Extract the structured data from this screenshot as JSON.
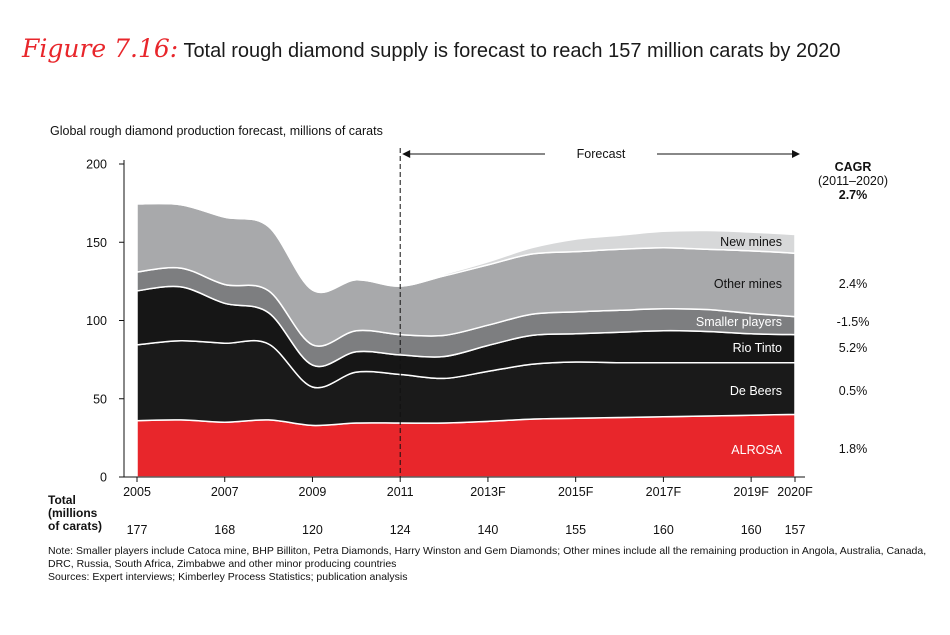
{
  "figure": {
    "label": "Figure 7.16:",
    "title": "Total rough diamond supply is forecast to reach 157 million carats by 2020"
  },
  "colors": {
    "ALROSA": "#e8262b",
    "De Beers": "#1a1a1a",
    "Rio Tinto": "#161616",
    "Smaller players": "#7d7e80",
    "Other mines": "#a8a9ab",
    "New mines": "#d7d8d9"
  },
  "chart_data": {
    "type": "area",
    "stacked": true,
    "subtitle": "Global rough diamond production forecast, millions of carats",
    "x": [
      2005,
      2006,
      2007,
      2008,
      2009,
      2010,
      2011,
      2012,
      2013,
      2014,
      2015,
      2016,
      2017,
      2018,
      2019,
      2020
    ],
    "xtick_labels": [
      "2005",
      "2007",
      "2009",
      "2011",
      "2013F",
      "2015F",
      "2017F",
      "2019F",
      "2020F"
    ],
    "xtick_values": [
      2005,
      2007,
      2009,
      2011,
      2013,
      2015,
      2017,
      2019,
      2020
    ],
    "ylim": [
      0,
      200
    ],
    "yticks": [
      0,
      50,
      100,
      150,
      200
    ],
    "forecast_start": 2011,
    "forecast_label": "Forecast",
    "series": [
      {
        "name": "ALROSA",
        "values": [
          36,
          36.5,
          35,
          36.5,
          33,
          34.5,
          34.5,
          34.5,
          35.5,
          37,
          37.5,
          38,
          38.5,
          39,
          39.5,
          40
        ]
      },
      {
        "name": "De Beers",
        "values": [
          48.5,
          50.5,
          50.5,
          48.5,
          24.5,
          32.5,
          31,
          28.5,
          32,
          35,
          36,
          35,
          34.5,
          34,
          33.5,
          33
        ]
      },
      {
        "name": "Rio Tinto",
        "values": [
          34.5,
          34.5,
          25.5,
          20,
          14,
          13,
          12.5,
          14,
          16.5,
          18.5,
          18,
          19.5,
          20.5,
          20,
          18.5,
          18
        ]
      },
      {
        "name": "Smaller players",
        "values": [
          12,
          12,
          12,
          14,
          13,
          13.5,
          13,
          13.5,
          13,
          13.5,
          14,
          14,
          14,
          14,
          13,
          11.5
        ]
      },
      {
        "name": "Other mines",
        "values": [
          43.5,
          40.5,
          43,
          41,
          35,
          32.5,
          31,
          38,
          38.5,
          38.5,
          38.5,
          39,
          39,
          38.5,
          40,
          40.5
        ]
      },
      {
        "name": "New mines",
        "values": [
          0,
          0,
          0,
          0,
          0,
          0,
          0,
          1,
          2,
          4,
          8,
          9,
          10.5,
          12,
          12,
          12
        ]
      }
    ],
    "legend_labels": [
      "New mines",
      "Other mines",
      "Smaller players",
      "Rio Tinto",
      "De Beers",
      "ALROSA"
    ],
    "cagr": {
      "title": "CAGR",
      "period": "(2011–2020)",
      "total": "2.7%",
      "values": {
        "Other mines": "2.4%",
        "Smaller players": "-1.5%",
        "Rio Tinto": "5.2%",
        "De Beers": "0.5%",
        "ALROSA": "1.8%"
      }
    },
    "totals": {
      "label": "Total (millions of carats)",
      "years": [
        2005,
        2007,
        2009,
        2011,
        2013,
        2015,
        2017,
        2019,
        2020
      ],
      "values": [
        "177",
        "168",
        "120",
        "124",
        "140",
        "155",
        "160",
        "160",
        "157"
      ]
    }
  },
  "total_label_lines": [
    "Total",
    "(millions",
    "of carats)"
  ],
  "notes": {
    "note": "Note: Smaller players include Catoca mine, BHP Billiton, Petra Diamonds, Harry Winston and Gem Diamonds; Other mines include all the remaining production in Angola, Australia, Canada, DRC, Russia, South Africa, Zimbabwe and other minor producing countries",
    "sources": "Sources: Expert interviews; Kimberley Process Statistics; publication analysis"
  }
}
